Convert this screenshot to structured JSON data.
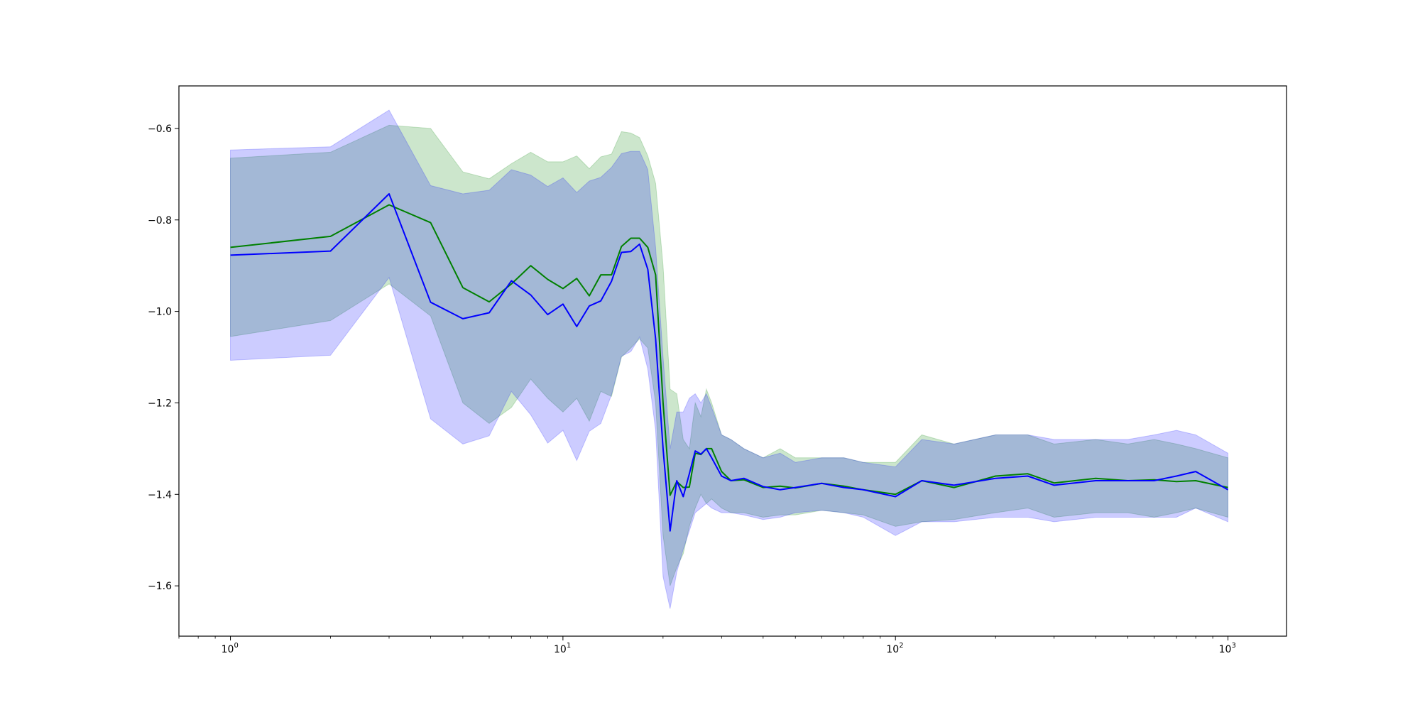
{
  "chart_data": {
    "type": "line",
    "title": "",
    "xlabel": "",
    "ylabel": "",
    "x_scale": "log",
    "xlim": [
      0.7,
      1500
    ],
    "ylim": [
      -1.71,
      -0.507
    ],
    "grid": false,
    "legend": "none",
    "x_ticks": [
      {
        "value": 1,
        "base": "10",
        "exp": "0"
      },
      {
        "value": 10,
        "base": "10",
        "exp": "1"
      },
      {
        "value": 100,
        "base": "10",
        "exp": "2"
      },
      {
        "value": 1000,
        "base": "10",
        "exp": "3"
      }
    ],
    "y_ticks": [
      {
        "value": -0.6,
        "label": "−0.6"
      },
      {
        "value": -0.8,
        "label": "−0.8"
      },
      {
        "value": -1.0,
        "label": "−1.0"
      },
      {
        "value": -1.2,
        "label": "−1.2"
      },
      {
        "value": -1.4,
        "label": "−1.4"
      },
      {
        "value": -1.6,
        "label": "−1.6"
      }
    ],
    "series": [
      {
        "color": "#008000",
        "band_color": "#008000",
        "band_opacity": 0.2,
        "x": [
          1,
          2,
          3,
          4,
          5,
          6,
          7,
          8,
          9,
          10,
          11,
          12,
          13,
          14,
          15,
          16,
          17,
          18,
          19,
          20,
          21,
          22,
          23,
          24,
          25,
          26,
          27,
          28,
          30,
          32,
          35,
          40,
          45,
          50,
          60,
          70,
          80,
          100,
          120,
          150,
          200,
          250,
          300,
          400,
          500,
          600,
          700,
          800,
          1000
        ],
        "y": [
          -0.86,
          -0.836,
          -0.767,
          -0.806,
          -0.948,
          -0.979,
          -0.94,
          -0.9,
          -0.93,
          -0.95,
          -0.928,
          -0.966,
          -0.92,
          -0.92,
          -0.858,
          -0.84,
          -0.84,
          -0.86,
          -0.92,
          -1.2,
          -1.402,
          -1.372,
          -1.385,
          -1.384,
          -1.31,
          -1.313,
          -1.3,
          -1.3,
          -1.35,
          -1.37,
          -1.368,
          -1.385,
          -1.382,
          -1.386,
          -1.376,
          -1.382,
          -1.39,
          -1.4,
          -1.37,
          -1.385,
          -1.36,
          -1.355,
          -1.375,
          -1.365,
          -1.37,
          -1.368,
          -1.372,
          -1.37,
          -1.385
        ],
        "upper": [
          -0.665,
          -0.652,
          -0.593,
          -0.6,
          -0.695,
          -0.71,
          -0.677,
          -0.652,
          -0.673,
          -0.673,
          -0.66,
          -0.688,
          -0.662,
          -0.656,
          -0.607,
          -0.61,
          -0.62,
          -0.66,
          -0.72,
          -0.9,
          -1.17,
          -1.18,
          -1.28,
          -1.3,
          -1.2,
          -1.23,
          -1.17,
          -1.2,
          -1.27,
          -1.28,
          -1.3,
          -1.32,
          -1.3,
          -1.32,
          -1.32,
          -1.32,
          -1.33,
          -1.33,
          -1.27,
          -1.29,
          -1.27,
          -1.27,
          -1.29,
          -1.28,
          -1.29,
          -1.28,
          -1.29,
          -1.3,
          -1.32
        ],
        "lower": [
          -1.055,
          -1.02,
          -0.94,
          -1.01,
          -1.2,
          -1.245,
          -1.21,
          -1.148,
          -1.19,
          -1.22,
          -1.19,
          -1.24,
          -1.175,
          -1.186,
          -1.1,
          -1.08,
          -1.06,
          -1.08,
          -1.2,
          -1.49,
          -1.6,
          -1.56,
          -1.53,
          -1.47,
          -1.43,
          -1.4,
          -1.42,
          -1.41,
          -1.43,
          -1.44,
          -1.44,
          -1.45,
          -1.445,
          -1.445,
          -1.435,
          -1.44,
          -1.445,
          -1.47,
          -1.46,
          -1.455,
          -1.44,
          -1.43,
          -1.45,
          -1.44,
          -1.44,
          -1.45,
          -1.44,
          -1.43,
          -1.45
        ]
      },
      {
        "color": "#0000ff",
        "band_color": "#0000ff",
        "band_opacity": 0.2,
        "x": [
          1,
          2,
          3,
          4,
          5,
          6,
          7,
          8,
          9,
          10,
          11,
          12,
          13,
          14,
          15,
          16,
          17,
          18,
          19,
          20,
          21,
          22,
          23,
          24,
          25,
          26,
          27,
          28,
          30,
          32,
          35,
          40,
          45,
          50,
          60,
          70,
          80,
          100,
          120,
          150,
          200,
          250,
          300,
          400,
          500,
          600,
          700,
          800,
          1000
        ],
        "y": [
          -0.877,
          -0.868,
          -0.743,
          -0.98,
          -1.016,
          -1.003,
          -0.933,
          -0.964,
          -1.007,
          -0.984,
          -1.033,
          -0.988,
          -0.977,
          -0.934,
          -0.871,
          -0.869,
          -0.853,
          -0.908,
          -1.06,
          -1.3,
          -1.48,
          -1.37,
          -1.405,
          -1.355,
          -1.305,
          -1.312,
          -1.3,
          -1.32,
          -1.36,
          -1.37,
          -1.365,
          -1.383,
          -1.39,
          -1.385,
          -1.376,
          -1.385,
          -1.39,
          -1.405,
          -1.37,
          -1.38,
          -1.365,
          -1.36,
          -1.38,
          -1.37,
          -1.37,
          -1.37,
          -1.36,
          -1.35,
          -1.39
        ],
        "upper": [
          -0.647,
          -0.64,
          -0.56,
          -0.725,
          -0.743,
          -0.735,
          -0.69,
          -0.702,
          -0.727,
          -0.708,
          -0.74,
          -0.715,
          -0.707,
          -0.685,
          -0.655,
          -0.65,
          -0.65,
          -0.69,
          -0.86,
          -1.1,
          -1.3,
          -1.22,
          -1.22,
          -1.19,
          -1.18,
          -1.2,
          -1.18,
          -1.21,
          -1.27,
          -1.28,
          -1.3,
          -1.32,
          -1.31,
          -1.33,
          -1.32,
          -1.32,
          -1.33,
          -1.34,
          -1.28,
          -1.29,
          -1.27,
          -1.27,
          -1.28,
          -1.28,
          -1.28,
          -1.27,
          -1.26,
          -1.27,
          -1.31
        ],
        "lower": [
          -1.107,
          -1.096,
          -0.926,
          -1.235,
          -1.29,
          -1.272,
          -1.175,
          -1.226,
          -1.288,
          -1.26,
          -1.326,
          -1.262,
          -1.245,
          -1.182,
          -1.098,
          -1.088,
          -1.056,
          -1.126,
          -1.26,
          -1.58,
          -1.65,
          -1.57,
          -1.52,
          -1.48,
          -1.44,
          -1.43,
          -1.42,
          -1.43,
          -1.44,
          -1.44,
          -1.445,
          -1.455,
          -1.45,
          -1.44,
          -1.435,
          -1.44,
          -1.45,
          -1.49,
          -1.46,
          -1.46,
          -1.45,
          -1.45,
          -1.46,
          -1.45,
          -1.45,
          -1.45,
          -1.45,
          -1.43,
          -1.46
        ]
      }
    ]
  }
}
